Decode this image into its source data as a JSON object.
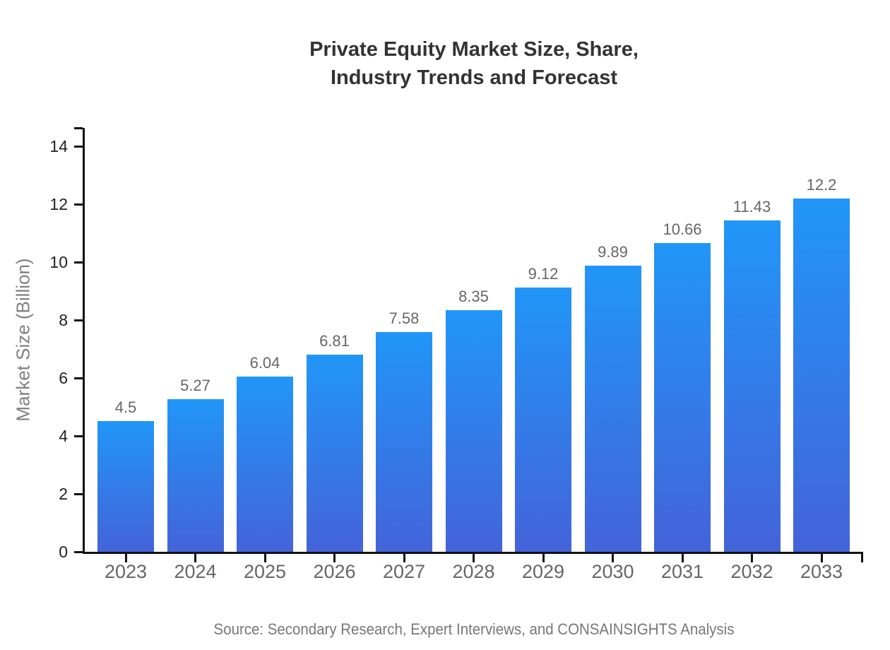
{
  "title": {
    "line1": "Private Equity Market Size, Share,",
    "line2": "Industry Trends and Forecast"
  },
  "source": "Source: Secondary Research, Expert Interviews, and CONSAINSIGHTS Analysis",
  "chart_data": {
    "type": "bar",
    "title": "Private Equity Market Size, Share, Industry Trends and Forecast",
    "categories": [
      "2023",
      "2024",
      "2025",
      "2026",
      "2027",
      "2028",
      "2029",
      "2030",
      "2031",
      "2032",
      "2033"
    ],
    "values": [
      4.5,
      5.27,
      6.04,
      6.81,
      7.58,
      8.35,
      9.12,
      9.89,
      10.66,
      11.43,
      12.2
    ],
    "value_labels": [
      "4.5",
      "5.27",
      "6.04",
      "6.81",
      "7.58",
      "8.35",
      "9.12",
      "9.89",
      "10.66",
      "11.43",
      "12.2"
    ],
    "xlabel": "",
    "ylabel": "Market Size (Billion)",
    "ylim": [
      0,
      14
    ],
    "ytick_step": 2,
    "ytick_labels": [
      "0",
      "2",
      "4",
      "6",
      "8",
      "10",
      "12",
      "14"
    ],
    "grid": false,
    "legend": "none",
    "bar_gradient_top": "#2196f8",
    "bar_gradient_bottom": "#4463d9"
  },
  "colors": {
    "title": "#333333",
    "axis": "#111111",
    "ytick_label": "#222222",
    "xtick_label": "#666666",
    "value_label": "#666666",
    "ylabel": "#808080",
    "source": "#777777",
    "background": "#ffffff"
  }
}
